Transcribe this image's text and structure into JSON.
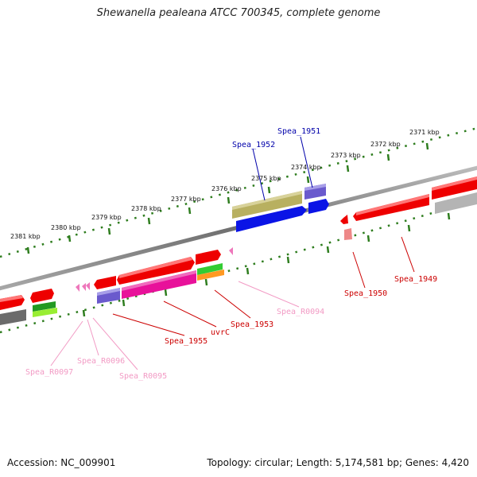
{
  "title": "Shewanella pealeana ATCC 700345, complete genome",
  "accession": "Accession: NC_009901",
  "topology": "Topology: circular; Length: 5,174,581 bp; Genes: 4,420",
  "scale_labels": [
    "2371 kbp",
    "2372 kbp",
    "2373 kbp",
    "2374 kbp",
    "2375 kbp",
    "2376 kbp",
    "2377 kbp",
    "2378 kbp",
    "2379 kbp",
    "2380 kbp",
    "2381 kbp"
  ],
  "gene_labels": {
    "spea_1951": "Spea_1951",
    "spea_1952": "Spea_1952",
    "spea_1949": "Spea_1949",
    "spea_1950": "Spea_1950",
    "spea_r0094": "Spea_R0094",
    "spea_1953": "Spea_1953",
    "uvrc": "uvrC",
    "spea_1955": "Spea_1955",
    "spea_r0095": "Spea_R0095",
    "spea_r0096": "Spea_R0096",
    "spea_r0097": "Spea_R0097"
  },
  "colors": {
    "backbone": "#7a7a7a",
    "scale": "#2e7d1e",
    "red_label": "#cc0000",
    "blue_label": "#0000aa",
    "pink_label": "#f29ac4",
    "red_gene": "#ee0000",
    "magenta_gene": "#e8119a",
    "purple_gene": "#6a5acd",
    "olive_gene": "#b8b060",
    "blue_gene": "#0a14e6",
    "gray_gene": "#b4b4b4",
    "darkgray_gene": "#6b6b6b",
    "green_gene": "#229922",
    "lime_gene": "#99ee33",
    "orange_gene": "#ff9922",
    "pink_gene": "#ee77bb",
    "salmon_gene": "#ee8888"
  }
}
